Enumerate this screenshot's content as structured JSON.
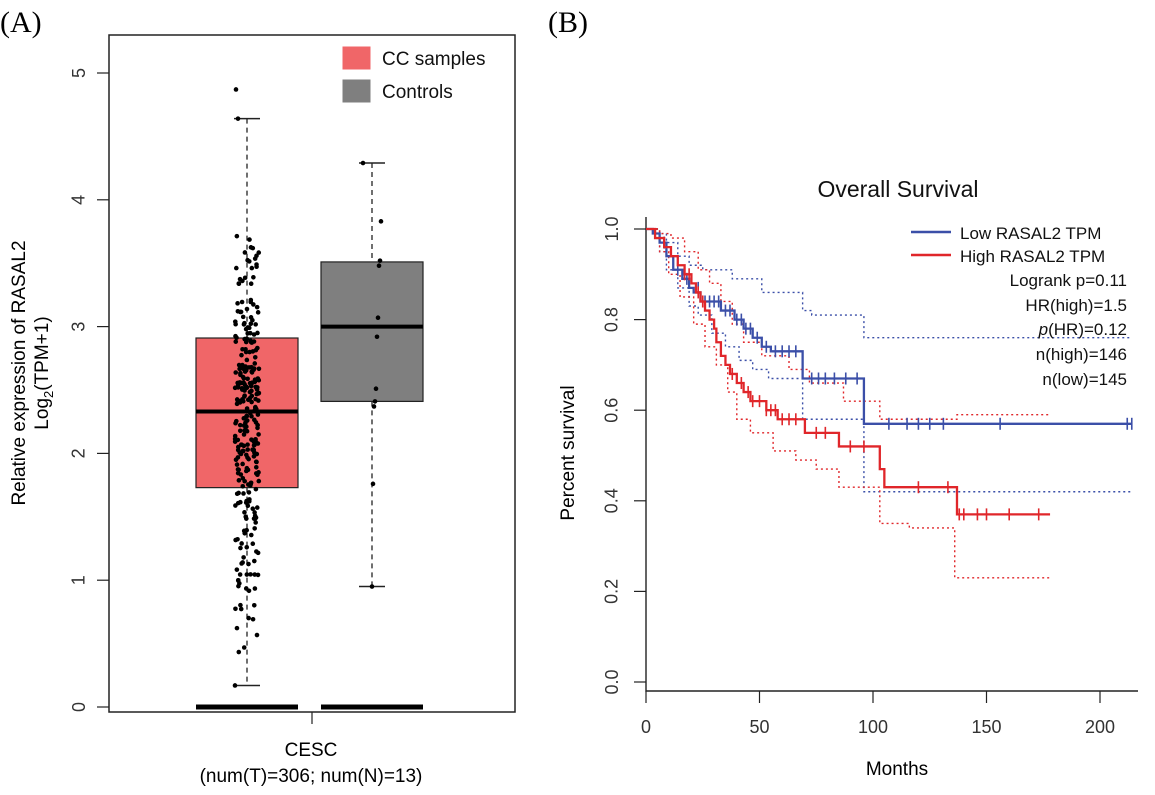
{
  "panel_a_label": "(A)",
  "panel_b_label": "(B)",
  "chart_data": [
    {
      "type": "box",
      "panel": "A",
      "ylabel_line1": "Relative expression of RASAL2",
      "ylabel_line2_prefix": "Log",
      "ylabel_line2_sub": "2",
      "ylabel_line2_suffix": "(TPM+1)",
      "xlabel": "CESC",
      "xlabel_sub": "(num(T)=306; num(N)=13)",
      "ylim": [
        0,
        5.2
      ],
      "yticks": [
        "0",
        "1",
        "2",
        "3",
        "4",
        "5"
      ],
      "legend": [
        {
          "name": "CC samples",
          "color": "#f06668"
        },
        {
          "name": "Controls",
          "color": "#7f7f7f"
        }
      ],
      "series": [
        {
          "name": "CC samples",
          "color": "#f06668",
          "n": 306,
          "whisker_low": 0.17,
          "q1": 1.73,
          "median": 2.33,
          "q3": 2.91,
          "whisker_high": 4.64,
          "outliers": [
            4.87
          ]
        },
        {
          "name": "Controls",
          "color": "#7f7f7f",
          "n": 13,
          "whisker_low": 0.95,
          "q1": 2.41,
          "median": 3.0,
          "q3": 3.51,
          "whisker_high": 4.29,
          "points": [
            4.29,
            3.83,
            3.52,
            3.48,
            3.07,
            2.92,
            2.51,
            2.41,
            2.37,
            1.76,
            0.95,
            0.0,
            0.0
          ]
        }
      ]
    },
    {
      "type": "line",
      "subtype": "kaplan-meier",
      "panel": "B",
      "title": "Overall Survival",
      "xlabel": "Months",
      "ylabel": "Percent survival",
      "xlim": [
        0,
        215
      ],
      "ylim": [
        0,
        1.0
      ],
      "xticks": [
        "0",
        "50",
        "100",
        "150",
        "200"
      ],
      "yticks": [
        "0.0",
        "0.2",
        "0.4",
        "0.6",
        "0.8",
        "1.0"
      ],
      "series": [
        {
          "name": "Low RASAL2 TPM",
          "color": "#3b4fa8",
          "steps": [
            [
              0,
              1.0
            ],
            [
              3,
              0.99
            ],
            [
              6,
              0.97
            ],
            [
              9,
              0.94
            ],
            [
              12,
              0.91
            ],
            [
              16,
              0.89
            ],
            [
              19,
              0.87
            ],
            [
              21,
              0.86
            ],
            [
              24,
              0.84
            ],
            [
              33,
              0.82
            ],
            [
              39,
              0.8
            ],
            [
              43,
              0.78
            ],
            [
              47,
              0.76
            ],
            [
              51,
              0.74
            ],
            [
              55,
              0.73
            ],
            [
              69,
              0.67
            ],
            [
              96,
              0.57
            ],
            [
              214,
              0.57
            ]
          ],
          "censor": [
            [
              8,
              0.97
            ],
            [
              14,
              0.91
            ],
            [
              18,
              0.89
            ],
            [
              23,
              0.87
            ],
            [
              25,
              0.84
            ],
            [
              26,
              0.84
            ],
            [
              28,
              0.84
            ],
            [
              30,
              0.84
            ],
            [
              32,
              0.84
            ],
            [
              35,
              0.82
            ],
            [
              37,
              0.82
            ],
            [
              40,
              0.8
            ],
            [
              42,
              0.8
            ],
            [
              44,
              0.78
            ],
            [
              46,
              0.78
            ],
            [
              49,
              0.76
            ],
            [
              53,
              0.74
            ],
            [
              57,
              0.73
            ],
            [
              60,
              0.73
            ],
            [
              63,
              0.73
            ],
            [
              66,
              0.73
            ],
            [
              73,
              0.67
            ],
            [
              76,
              0.67
            ],
            [
              79,
              0.67
            ],
            [
              83,
              0.67
            ],
            [
              88,
              0.67
            ],
            [
              93,
              0.67
            ],
            [
              107,
              0.57
            ],
            [
              115,
              0.57
            ],
            [
              120,
              0.57
            ],
            [
              125,
              0.57
            ],
            [
              131,
              0.57
            ],
            [
              156,
              0.57
            ],
            [
              212,
              0.57
            ],
            [
              214,
              0.57
            ]
          ],
          "ci_upper": [
            [
              0,
              1.0
            ],
            [
              5,
              0.99
            ],
            [
              9,
              0.97
            ],
            [
              14,
              0.94
            ],
            [
              19,
              0.92
            ],
            [
              25,
              0.91
            ],
            [
              38,
              0.89
            ],
            [
              51,
              0.86
            ],
            [
              69,
              0.82
            ],
            [
              73,
              0.81
            ],
            [
              96,
              0.76
            ],
            [
              214,
              0.76
            ]
          ],
          "ci_lower": [
            [
              0,
              1.0
            ],
            [
              6,
              0.95
            ],
            [
              9,
              0.91
            ],
            [
              14,
              0.87
            ],
            [
              19,
              0.83
            ],
            [
              23,
              0.81
            ],
            [
              29,
              0.77
            ],
            [
              35,
              0.74
            ],
            [
              41,
              0.71
            ],
            [
              47,
              0.69
            ],
            [
              54,
              0.67
            ],
            [
              69,
              0.58
            ],
            [
              96,
              0.42
            ],
            [
              214,
              0.42
            ]
          ]
        },
        {
          "name": "High RASAL2 TPM",
          "color": "#e0262a",
          "steps": [
            [
              0,
              1.0
            ],
            [
              4,
              0.98
            ],
            [
              8,
              0.96
            ],
            [
              11,
              0.94
            ],
            [
              14,
              0.92
            ],
            [
              17,
              0.9
            ],
            [
              20,
              0.88
            ],
            [
              22,
              0.86
            ],
            [
              24,
              0.84
            ],
            [
              26,
              0.82
            ],
            [
              28,
              0.8
            ],
            [
              30,
              0.78
            ],
            [
              31,
              0.75
            ],
            [
              33,
              0.72
            ],
            [
              35,
              0.7
            ],
            [
              37,
              0.68
            ],
            [
              40,
              0.66
            ],
            [
              43,
              0.64
            ],
            [
              46,
              0.62
            ],
            [
              53,
              0.6
            ],
            [
              58,
              0.58
            ],
            [
              70,
              0.55
            ],
            [
              85,
              0.52
            ],
            [
              103,
              0.47
            ],
            [
              105,
              0.43
            ],
            [
              137,
              0.37
            ],
            [
              178,
              0.37
            ]
          ],
          "censor": [
            [
              17,
              0.9
            ],
            [
              19,
              0.9
            ],
            [
              23,
              0.86
            ],
            [
              25,
              0.84
            ],
            [
              38,
              0.68
            ],
            [
              42,
              0.66
            ],
            [
              45,
              0.64
            ],
            [
              47,
              0.62
            ],
            [
              50,
              0.62
            ],
            [
              53,
              0.6
            ],
            [
              55,
              0.6
            ],
            [
              57,
              0.6
            ],
            [
              60,
              0.58
            ],
            [
              63,
              0.58
            ],
            [
              66,
              0.58
            ],
            [
              75,
              0.55
            ],
            [
              79,
              0.55
            ],
            [
              90,
              0.52
            ],
            [
              96,
              0.52
            ],
            [
              120,
              0.43
            ],
            [
              133,
              0.43
            ],
            [
              138,
              0.37
            ],
            [
              140,
              0.37
            ],
            [
              146,
              0.37
            ],
            [
              150,
              0.37
            ],
            [
              160,
              0.37
            ],
            [
              173,
              0.37
            ]
          ],
          "ci_upper": [
            [
              0,
              1.0
            ],
            [
              6,
              0.99
            ],
            [
              11,
              0.98
            ],
            [
              17,
              0.95
            ],
            [
              23,
              0.91
            ],
            [
              28,
              0.88
            ],
            [
              33,
              0.84
            ],
            [
              38,
              0.79
            ],
            [
              43,
              0.75
            ],
            [
              51,
              0.72
            ],
            [
              63,
              0.69
            ],
            [
              72,
              0.66
            ],
            [
              87,
              0.62
            ],
            [
              103,
              0.58
            ],
            [
              134,
              0.58
            ],
            [
              137,
              0.59
            ],
            [
              178,
              0.59
            ]
          ],
          "ci_lower": [
            [
              0,
              1.0
            ],
            [
              6,
              0.95
            ],
            [
              10,
              0.9
            ],
            [
              15,
              0.85
            ],
            [
              21,
              0.79
            ],
            [
              26,
              0.74
            ],
            [
              31,
              0.7
            ],
            [
              36,
              0.64
            ],
            [
              40,
              0.58
            ],
            [
              46,
              0.55
            ],
            [
              56,
              0.51
            ],
            [
              66,
              0.49
            ],
            [
              75,
              0.47
            ],
            [
              85,
              0.43
            ],
            [
              103,
              0.35
            ],
            [
              116,
              0.34
            ],
            [
              136,
              0.23
            ],
            [
              178,
              0.23
            ]
          ]
        }
      ],
      "stats": {
        "logrank": "Logrank p=0.11",
        "hr": "HR(high)=1.5",
        "p_hr_italic": "p",
        "p_hr_rest": "(HR)=0.12",
        "n_high": "n(high)=146",
        "n_low": "n(low)=145"
      }
    }
  ]
}
